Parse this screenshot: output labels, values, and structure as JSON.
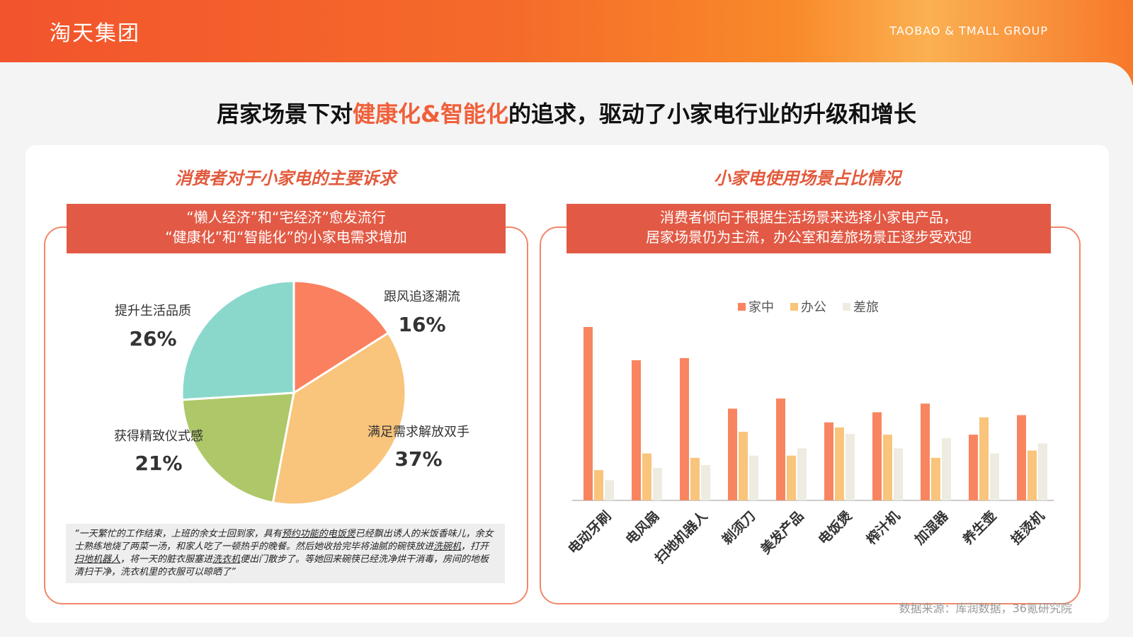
{
  "header": {
    "brand": "淘天集团",
    "brand_en": "TAOBAO & TMALL GROUP"
  },
  "title": {
    "prefix": "居家场景下对",
    "highlight": "健康化&智能化",
    "suffix": "的追求，驱动了小家电行业的升级和增长"
  },
  "left": {
    "section_title": "消费者对于小家电的主要诉求",
    "banner_line1": "“懒人经济”和“宅经济”愈发流行",
    "banner_line2": "“健康化”和“智能化”的小家电需求增加",
    "quote": {
      "p1": "“一天繁忙的工作结束，上班的余女士回到家，具有",
      "u1": "预约功能的电饭煲",
      "p2": "已经飘出诱人的米饭香味儿，余女士熟练地烧了两菜一汤，和家人吃了一顿热乎的晚餐。然后她收拾完毕将油腻的碗筷放进",
      "u2": "洗碗机",
      "p3": "，打开",
      "u3": "扫地机器人",
      "p4": "，将一天的脏衣服塞进",
      "u4": "洗衣机",
      "p5": "便出门散步了。等她回来碗筷已经洗净烘干消毒，房间的地板清扫干净，洗衣机里的衣服可以晾晒了”"
    }
  },
  "right": {
    "section_title": "小家电使用场景占比情况",
    "banner_line1": "消费者倾向于根据生活场景来选择小家电产品，",
    "banner_line2": "居家场景仍为主流，办公室和差旅场景正逐步受欢迎"
  },
  "source": "数据来源：库润数据，36氪研究院",
  "colors": {
    "accent": "#e25a45",
    "home": "#f98560",
    "office": "#f9c47b",
    "travel": "#eeebe0"
  },
  "chart_data": [
    {
      "type": "pie",
      "slices": [
        {
          "label": "跟风追逐潮流",
          "value": 16,
          "display": "16%",
          "color": "#fb8060"
        },
        {
          "label": "满足需求解放双手",
          "value": 37,
          "display": "37%",
          "color": "#f9c47b"
        },
        {
          "label": "获得精致仪式感",
          "value": 21,
          "display": "21%",
          "color": "#aec768"
        },
        {
          "label": "提升生活品质",
          "value": 26,
          "display": "26%",
          "color": "#8ad8cb"
        }
      ]
    },
    {
      "type": "bar",
      "categories": [
        "电动牙刷",
        "电风扇",
        "扫地机器人",
        "剃须刀",
        "美发产品",
        "电饭煲",
        "榨汁机",
        "加湿器",
        "养生壶",
        "挂烫机"
      ],
      "series": [
        {
          "name": "家中",
          "color": "#f98560",
          "values": [
            240,
            194,
            197,
            127,
            141,
            108,
            122,
            134,
            91,
            118
          ]
        },
        {
          "name": "办公",
          "color": "#f9c47b",
          "values": [
            42,
            65,
            59,
            95,
            62,
            101,
            91,
            59,
            115,
            69
          ]
        },
        {
          "name": "差旅",
          "color": "#eeebe0",
          "values": [
            28,
            45,
            49,
            62,
            72,
            92,
            72,
            86,
            65,
            79
          ]
        }
      ],
      "ylim": [
        0,
        240
      ],
      "legend": "top-center",
      "grid": false
    }
  ]
}
